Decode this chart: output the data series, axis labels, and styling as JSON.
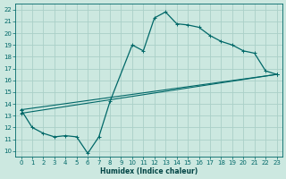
{
  "xlabel": "Humidex (Indice chaleur)",
  "ylabel": "",
  "bg_color": "#cce8e0",
  "grid_color": "#aad0c8",
  "line_color": "#006868",
  "xlim": [
    -0.5,
    23.5
  ],
  "ylim": [
    9.5,
    22.5
  ],
  "xticks": [
    0,
    1,
    2,
    3,
    4,
    5,
    6,
    7,
    8,
    9,
    10,
    11,
    12,
    13,
    14,
    15,
    16,
    17,
    18,
    19,
    20,
    21,
    22,
    23
  ],
  "yticks": [
    10,
    11,
    12,
    13,
    14,
    15,
    16,
    17,
    18,
    19,
    20,
    21,
    22
  ],
  "curve1_x": [
    0,
    1,
    2,
    3,
    4,
    5,
    6,
    7,
    8,
    10,
    11,
    12,
    13,
    14,
    15,
    16,
    17,
    18,
    19,
    20,
    21,
    22,
    23
  ],
  "curve1_y": [
    13.5,
    12.0,
    11.5,
    11.2,
    11.3,
    11.2,
    9.8,
    11.2,
    14.2,
    19.0,
    18.5,
    21.3,
    21.8,
    20.8,
    20.7,
    20.5,
    19.8,
    19.3,
    19.0,
    18.5,
    18.3,
    16.8,
    16.5
  ],
  "line2_x": [
    0,
    23
  ],
  "line2_y": [
    13.5,
    16.5
  ],
  "line3_x": [
    0,
    23
  ],
  "line3_y": [
    13.2,
    16.5
  ]
}
